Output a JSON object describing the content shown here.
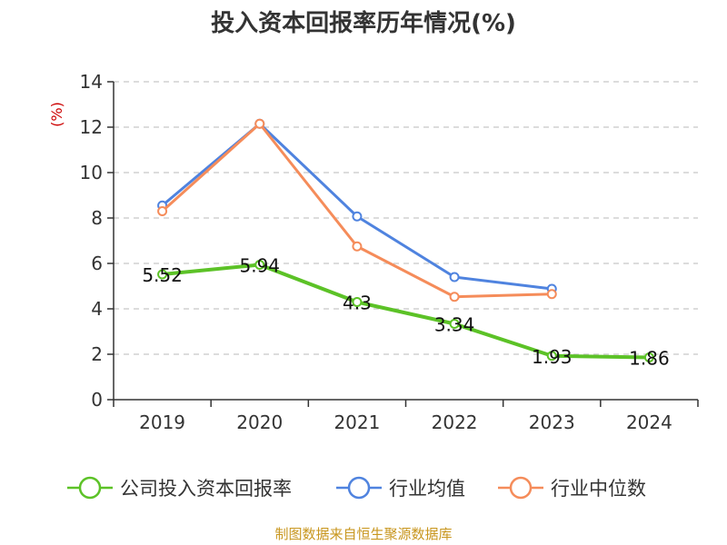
{
  "chart_data": {
    "type": "line",
    "title": "投入资本回报率历年情况(%)",
    "ylabel": "(%)",
    "xlabel": "",
    "ylim": [
      0,
      14
    ],
    "yticks": [
      0,
      2,
      4,
      6,
      8,
      10,
      12,
      14
    ],
    "categories": [
      "2019",
      "2020",
      "2021",
      "2022",
      "2023",
      "2024"
    ],
    "grid": true,
    "legend_position": "bottom",
    "series": [
      {
        "name": "公司投入资本回报率",
        "color": "#5cc227",
        "values": [
          5.52,
          5.94,
          4.3,
          3.34,
          1.93,
          1.86
        ],
        "labels": [
          "5.52",
          "5.94",
          "4.3",
          "3.34",
          "1.93",
          "1.86"
        ]
      },
      {
        "name": "行业均值",
        "color": "#4f83df",
        "values": [
          8.55,
          12.15,
          8.07,
          5.4,
          4.88,
          null
        ]
      },
      {
        "name": "行业中位数",
        "color": "#f58c5a",
        "values": [
          8.3,
          12.15,
          6.75,
          4.53,
          4.65,
          null
        ]
      }
    ],
    "source": "制图数据来自恒生聚源数据库"
  }
}
